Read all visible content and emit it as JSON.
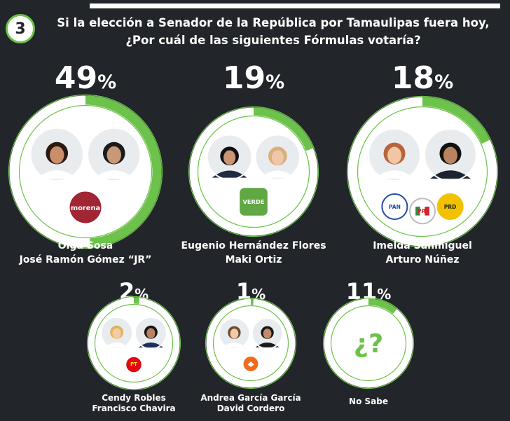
{
  "question": {
    "number": "3",
    "line1": "Si la elección a Senador de la República por Tamaulipas fuera hoy,",
    "line2": "¿Por cuál de las siguientes Fórmulas votaría?"
  },
  "colors": {
    "background": "#222529",
    "accent_green": "#6cc24a",
    "morena": "#a12533",
    "verde": "#5fa843",
    "pan": "#1f4ea3",
    "pri_green": "#2e8b3f",
    "pri_red": "#d0262d",
    "prd": "#f2c200",
    "pt": "#e30613",
    "mc": "#f26b1d"
  },
  "candidates": [
    {
      "id": "morena",
      "line1": "Olga Sosa",
      "line2": "José Ramón Gómez “JR”",
      "percent": 49,
      "parties": [
        "morena-logo"
      ],
      "party_text": [
        "morena"
      ]
    },
    {
      "id": "verde",
      "line1": "Eugenio Hernández Flores",
      "line2": "Maki Ortiz",
      "percent": 19,
      "parties": [
        "verde-logo"
      ],
      "party_text": [
        "VERDE"
      ]
    },
    {
      "id": "pan-pri-prd",
      "line1": "Imelda Sanmiguel",
      "line2": "Arturo Núñez",
      "percent": 18,
      "parties": [
        "pan-logo",
        "pri-logo",
        "prd-logo"
      ],
      "party_text": [
        "PAN",
        "PRI",
        "PRD"
      ]
    },
    {
      "id": "pt",
      "line1": "Cendy Robles",
      "line2": "Francisco Chavira",
      "percent": 2,
      "parties": [
        "pt-logo"
      ],
      "party_text": [
        "PT"
      ]
    },
    {
      "id": "mc",
      "line1": "Andrea García García",
      "line2": "David Cordero",
      "percent": 1,
      "parties": [
        "mc-logo"
      ],
      "party_text": [
        ""
      ]
    },
    {
      "id": "no-sabe",
      "line1": "No Sabe",
      "line2": "",
      "percent": 11,
      "parties": [],
      "party_text": [],
      "center_text": "¿?"
    }
  ],
  "chart_data": {
    "type": "pie",
    "title": "Si la elección a Senador de la República por Tamaulipas fuera hoy, ¿Por cuál de las siguientes Fórmulas votaría?",
    "categories": [
      "Olga Sosa / José Ramón Gómez “JR”",
      "Eugenio Hernández Flores / Maki Ortiz",
      "Imelda Sanmiguel / Arturo Núñez",
      "Cendy Robles / Francisco Chavira",
      "Andrea García García / David Cordero",
      "No Sabe"
    ],
    "values": [
      49,
      19,
      18,
      2,
      1,
      11
    ],
    "unit": "%"
  }
}
